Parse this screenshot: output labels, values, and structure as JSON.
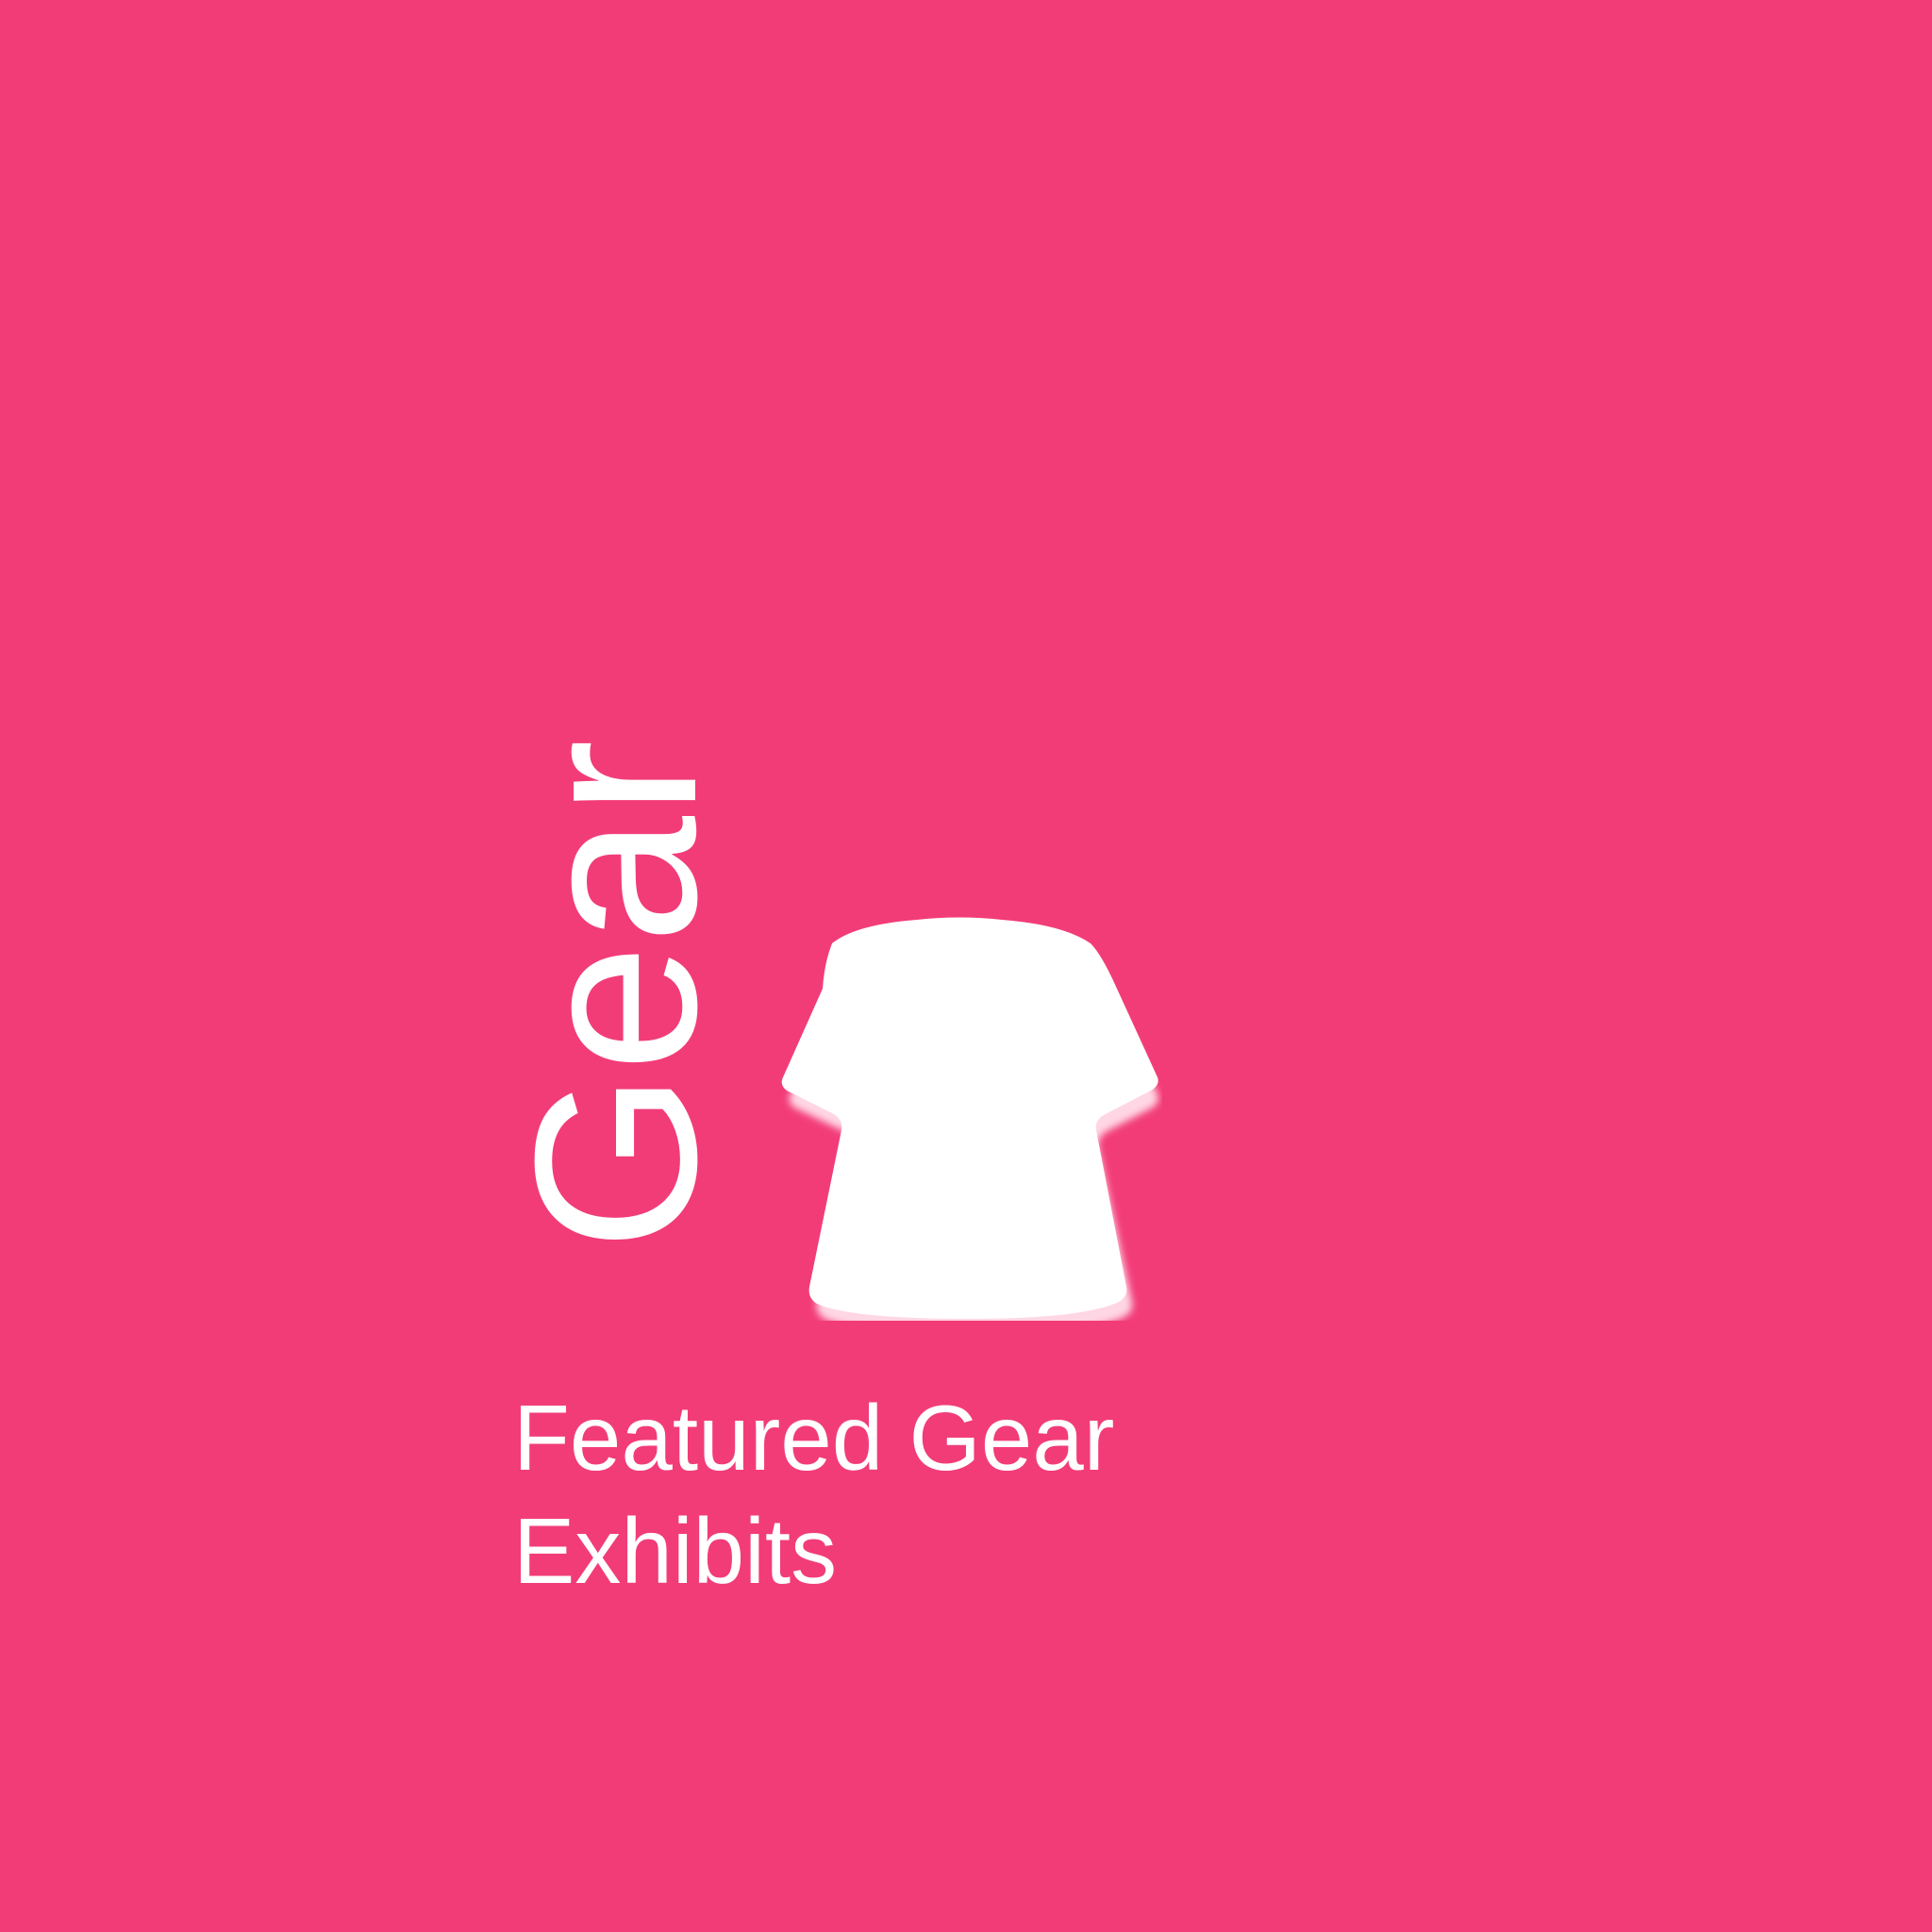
{
  "tile": {
    "background_color": "#f23c78",
    "vertical_label": "Gear",
    "icon": "tshirt-icon",
    "caption_line1": "Featured Gear",
    "caption_line2": "Exhibits"
  }
}
